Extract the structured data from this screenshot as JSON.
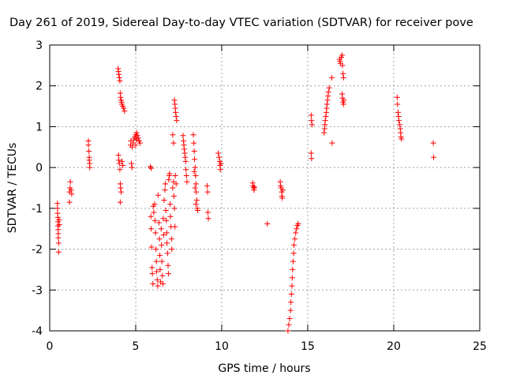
{
  "chart_data": {
    "type": "scatter",
    "title": "Day 261 of 2019, Sidereal Day-to-day VTEC variation (SDTVAR) for receiver pove",
    "xlabel": "GPS time / hours",
    "ylabel": "SDTVAR / TECUs",
    "xlim": [
      0,
      25
    ],
    "ylim": [
      -4,
      3
    ],
    "xticks": [
      0,
      5,
      10,
      15,
      20,
      25
    ],
    "yticks": [
      -4,
      -3,
      -2,
      -1,
      0,
      1,
      2,
      3
    ],
    "grid": true,
    "marker": "+",
    "marker_color": "#ff0000",
    "series": [
      {
        "name": "SDTVAR",
        "points": [
          [
            0.45,
            -0.88
          ],
          [
            0.45,
            -1.0
          ],
          [
            0.46,
            -1.12
          ],
          [
            0.47,
            -1.22
          ],
          [
            0.48,
            -1.33
          ],
          [
            0.48,
            -1.43
          ],
          [
            0.49,
            -1.52
          ],
          [
            0.5,
            -1.62
          ],
          [
            0.5,
            -1.72
          ],
          [
            0.52,
            -1.85
          ],
          [
            0.52,
            -2.07
          ],
          [
            0.55,
            -1.28
          ],
          [
            0.56,
            -1.4
          ],
          [
            1.15,
            -0.85
          ],
          [
            1.15,
            -0.6
          ],
          [
            1.18,
            -0.5
          ],
          [
            1.2,
            -0.35
          ],
          [
            1.25,
            -0.55
          ],
          [
            1.28,
            -0.65
          ],
          [
            2.25,
            0.65
          ],
          [
            2.25,
            0.55
          ],
          [
            2.28,
            0.4
          ],
          [
            2.3,
            0.25
          ],
          [
            2.3,
            0.18
          ],
          [
            2.32,
            0.1
          ],
          [
            2.33,
            0.0
          ],
          [
            3.98,
            2.42
          ],
          [
            4.0,
            2.35
          ],
          [
            4.02,
            2.28
          ],
          [
            4.05,
            2.2
          ],
          [
            4.08,
            2.12
          ],
          [
            4.1,
            1.82
          ],
          [
            4.12,
            1.72
          ],
          [
            4.15,
            1.65
          ],
          [
            4.18,
            1.6
          ],
          [
            4.2,
            1.55
          ],
          [
            4.25,
            1.5
          ],
          [
            4.3,
            1.45
          ],
          [
            4.35,
            1.38
          ],
          [
            4.0,
            0.3
          ],
          [
            4.02,
            0.18
          ],
          [
            4.05,
            0.1
          ],
          [
            4.08,
            -0.05
          ],
          [
            4.1,
            -0.4
          ],
          [
            4.12,
            -0.5
          ],
          [
            4.15,
            -0.6
          ],
          [
            4.1,
            -0.85
          ],
          [
            4.2,
            0.15
          ],
          [
            4.25,
            0.05
          ],
          [
            4.7,
            0.55
          ],
          [
            4.72,
            0.65
          ],
          [
            4.75,
            0.1
          ],
          [
            4.78,
            0.0
          ],
          [
            4.8,
            0.5
          ],
          [
            4.85,
            0.6
          ],
          [
            4.9,
            0.7
          ],
          [
            4.95,
            0.75
          ],
          [
            5.0,
            0.8
          ],
          [
            5.05,
            0.85
          ],
          [
            5.1,
            0.78
          ],
          [
            5.15,
            0.72
          ],
          [
            5.2,
            0.65
          ],
          [
            5.25,
            0.6
          ],
          [
            5.0,
            0.55
          ],
          [
            5.05,
            0.68
          ],
          [
            5.85,
            0.02
          ],
          [
            5.9,
            -0.02
          ],
          [
            5.88,
            -1.2
          ],
          [
            5.9,
            -1.5
          ],
          [
            5.92,
            -1.95
          ],
          [
            5.95,
            -2.45
          ],
          [
            5.97,
            -2.6
          ],
          [
            6.0,
            -2.85
          ],
          [
            6.02,
            -0.95
          ],
          [
            6.05,
            -1.1
          ],
          [
            6.1,
            -0.9
          ],
          [
            6.12,
            -1.3
          ],
          [
            6.15,
            -1.6
          ],
          [
            6.18,
            -2.0
          ],
          [
            6.2,
            -2.3
          ],
          [
            6.22,
            -2.55
          ],
          [
            6.25,
            -2.75
          ],
          [
            6.28,
            -2.9
          ],
          [
            6.3,
            -0.68
          ],
          [
            6.35,
            -1.35
          ],
          [
            6.38,
            -1.75
          ],
          [
            6.4,
            -2.15
          ],
          [
            6.42,
            -2.5
          ],
          [
            6.45,
            -2.8
          ],
          [
            6.48,
            -1.5
          ],
          [
            6.5,
            -1.9
          ],
          [
            6.52,
            -2.3
          ],
          [
            6.55,
            -2.65
          ],
          [
            6.58,
            -2.85
          ],
          [
            6.6,
            -1.25
          ],
          [
            6.62,
            -1.65
          ],
          [
            6.65,
            -0.8
          ],
          [
            6.7,
            -0.55
          ],
          [
            6.72,
            -0.4
          ],
          [
            6.75,
            -1.05
          ],
          [
            6.78,
            -1.3
          ],
          [
            6.8,
            -1.6
          ],
          [
            6.82,
            -1.85
          ],
          [
            6.85,
            -2.1
          ],
          [
            6.88,
            -2.4
          ],
          [
            6.9,
            -2.6
          ],
          [
            6.92,
            -0.3
          ],
          [
            6.95,
            -0.2
          ],
          [
            6.97,
            -0.15
          ],
          [
            7.0,
            -0.9
          ],
          [
            7.02,
            -1.2
          ],
          [
            7.05,
            -1.45
          ],
          [
            7.08,
            -1.75
          ],
          [
            7.1,
            -2.0
          ],
          [
            7.15,
            -0.5
          ],
          [
            7.2,
            -0.35
          ],
          [
            7.22,
            -0.7
          ],
          [
            7.25,
            -1.0
          ],
          [
            7.28,
            -1.45
          ],
          [
            7.3,
            -0.2
          ],
          [
            7.35,
            -0.4
          ],
          [
            7.25,
            1.65
          ],
          [
            7.28,
            1.55
          ],
          [
            7.3,
            1.45
          ],
          [
            7.32,
            1.35
          ],
          [
            7.35,
            1.25
          ],
          [
            7.38,
            1.15
          ],
          [
            7.15,
            0.8
          ],
          [
            7.2,
            0.6
          ],
          [
            7.75,
            0.78
          ],
          [
            7.78,
            0.65
          ],
          [
            7.8,
            0.55
          ],
          [
            7.82,
            0.45
          ],
          [
            7.85,
            0.35
          ],
          [
            7.88,
            0.25
          ],
          [
            7.9,
            0.15
          ],
          [
            7.92,
            -0.05
          ],
          [
            7.95,
            -0.2
          ],
          [
            7.98,
            -0.35
          ],
          [
            8.35,
            0.8
          ],
          [
            8.38,
            0.6
          ],
          [
            8.4,
            0.4
          ],
          [
            8.42,
            0.2
          ],
          [
            8.45,
            0.0
          ],
          [
            8.48,
            -0.2
          ],
          [
            8.5,
            -0.4
          ],
          [
            8.52,
            -0.6
          ],
          [
            8.55,
            -0.8
          ],
          [
            8.58,
            -1.0
          ],
          [
            8.6,
            -1.05
          ],
          [
            8.4,
            -0.1
          ],
          [
            8.45,
            -0.5
          ],
          [
            8.5,
            -0.9
          ],
          [
            9.15,
            -0.45
          ],
          [
            9.18,
            -0.6
          ],
          [
            9.2,
            -1.1
          ],
          [
            9.22,
            -1.25
          ],
          [
            9.8,
            0.35
          ],
          [
            9.85,
            0.25
          ],
          [
            9.88,
            0.15
          ],
          [
            9.9,
            0.05
          ],
          [
            9.92,
            -0.05
          ],
          [
            9.95,
            0.1
          ],
          [
            11.8,
            -0.38
          ],
          [
            11.82,
            -0.45
          ],
          [
            11.85,
            -0.5
          ],
          [
            11.88,
            -0.55
          ],
          [
            11.9,
            -0.48
          ],
          [
            12.65,
            -1.38
          ],
          [
            13.4,
            -0.35
          ],
          [
            13.42,
            -0.45
          ],
          [
            13.45,
            -0.5
          ],
          [
            13.48,
            -0.6
          ],
          [
            13.5,
            -0.7
          ],
          [
            13.52,
            -0.75
          ],
          [
            13.55,
            -0.55
          ],
          [
            13.85,
            -4.0
          ],
          [
            13.9,
            -3.85
          ],
          [
            13.95,
            -3.7
          ],
          [
            14.0,
            -3.5
          ],
          [
            14.02,
            -3.3
          ],
          [
            14.05,
            -3.1
          ],
          [
            14.08,
            -2.9
          ],
          [
            14.1,
            -2.7
          ],
          [
            14.12,
            -2.5
          ],
          [
            14.15,
            -2.3
          ],
          [
            14.18,
            -2.1
          ],
          [
            14.2,
            -1.9
          ],
          [
            14.25,
            -1.75
          ],
          [
            14.3,
            -1.6
          ],
          [
            14.35,
            -1.5
          ],
          [
            14.4,
            -1.42
          ],
          [
            14.45,
            -1.38
          ],
          [
            15.2,
            1.28
          ],
          [
            15.22,
            1.15
          ],
          [
            15.25,
            1.05
          ],
          [
            15.2,
            0.35
          ],
          [
            15.22,
            0.22
          ],
          [
            15.95,
            0.85
          ],
          [
            15.98,
            0.95
          ],
          [
            16.0,
            1.05
          ],
          [
            16.02,
            1.15
          ],
          [
            16.05,
            1.25
          ],
          [
            16.08,
            1.35
          ],
          [
            16.1,
            1.45
          ],
          [
            16.12,
            1.55
          ],
          [
            16.15,
            1.65
          ],
          [
            16.18,
            1.75
          ],
          [
            16.2,
            1.85
          ],
          [
            16.25,
            1.95
          ],
          [
            16.4,
            2.2
          ],
          [
            16.42,
            0.6
          ],
          [
            16.85,
            2.65
          ],
          [
            16.88,
            2.6
          ],
          [
            16.9,
            2.55
          ],
          [
            16.95,
            2.7
          ],
          [
            17.0,
            2.75
          ],
          [
            17.02,
            2.5
          ],
          [
            17.05,
            2.3
          ],
          [
            17.08,
            2.2
          ],
          [
            17.0,
            1.8
          ],
          [
            17.02,
            1.7
          ],
          [
            17.05,
            1.6
          ],
          [
            17.08,
            1.55
          ],
          [
            17.1,
            1.65
          ],
          [
            20.2,
            1.72
          ],
          [
            20.22,
            1.55
          ],
          [
            20.25,
            1.35
          ],
          [
            20.28,
            1.25
          ],
          [
            20.3,
            1.15
          ],
          [
            20.35,
            1.05
          ],
          [
            20.38,
            0.95
          ],
          [
            20.4,
            0.85
          ],
          [
            20.42,
            0.75
          ],
          [
            20.45,
            0.7
          ],
          [
            22.3,
            0.6
          ],
          [
            22.32,
            0.25
          ]
        ]
      }
    ]
  }
}
